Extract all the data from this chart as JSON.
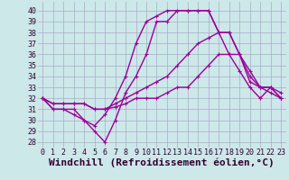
{
  "xlabel": "Windchill (Refroidissement éolien,°C)",
  "xlim": [
    -0.5,
    23.5
  ],
  "ylim": [
    27.5,
    40.8
  ],
  "yticks": [
    28,
    29,
    30,
    31,
    32,
    33,
    34,
    35,
    36,
    37,
    38,
    39,
    40
  ],
  "xticks": [
    0,
    1,
    2,
    3,
    4,
    5,
    6,
    7,
    8,
    9,
    10,
    11,
    12,
    13,
    14,
    15,
    16,
    17,
    18,
    19,
    20,
    21,
    22,
    23
  ],
  "background_color": "#cce8e8",
  "grid_color": "#aaaacc",
  "line_color": "#990099",
  "marker": "+",
  "lines": [
    {
      "x": [
        0,
        1,
        2,
        3,
        4,
        5,
        6,
        7,
        8,
        9,
        10,
        11,
        12,
        13,
        14,
        15,
        16,
        17,
        18,
        19,
        20,
        21,
        22,
        23
      ],
      "y": [
        32,
        31,
        31,
        30.5,
        30,
        29,
        28,
        30,
        32.5,
        34,
        36,
        39,
        39,
        40,
        40,
        40,
        40,
        38,
        38,
        36,
        34.5,
        33,
        33,
        32.5
      ]
    },
    {
      "x": [
        0,
        1,
        2,
        3,
        4,
        5,
        6,
        7,
        8,
        9,
        10,
        11,
        12,
        13,
        14,
        15,
        16,
        17,
        18,
        19,
        20,
        21,
        22,
        23
      ],
      "y": [
        32,
        31,
        31,
        31,
        30,
        29.5,
        30.5,
        32,
        34,
        37,
        39,
        39.5,
        40,
        40,
        40,
        40,
        40,
        38,
        36,
        34.5,
        33,
        32,
        33,
        32
      ]
    },
    {
      "x": [
        0,
        1,
        2,
        3,
        4,
        5,
        6,
        7,
        8,
        9,
        10,
        11,
        12,
        13,
        14,
        15,
        16,
        17,
        18,
        19,
        20,
        21,
        22,
        23
      ],
      "y": [
        32,
        31.5,
        31.5,
        31.5,
        31.5,
        31,
        31,
        31.5,
        32,
        32.5,
        33,
        33.5,
        34,
        35,
        36,
        37,
        37.5,
        38,
        38,
        36,
        33.5,
        33,
        33,
        32
      ]
    },
    {
      "x": [
        0,
        1,
        2,
        3,
        4,
        5,
        6,
        7,
        8,
        9,
        10,
        11,
        12,
        13,
        14,
        15,
        16,
        17,
        18,
        19,
        20,
        21,
        22,
        23
      ],
      "y": [
        32,
        31.5,
        31.5,
        31.5,
        31.5,
        31,
        31,
        31.2,
        31.5,
        32,
        32,
        32,
        32.5,
        33,
        33,
        34,
        35,
        36,
        36,
        36,
        34,
        33,
        32.5,
        32
      ]
    }
  ],
  "xlabel_fontsize": 8,
  "tick_fontsize": 6,
  "linewidth": 1.0,
  "markersize": 3.5
}
